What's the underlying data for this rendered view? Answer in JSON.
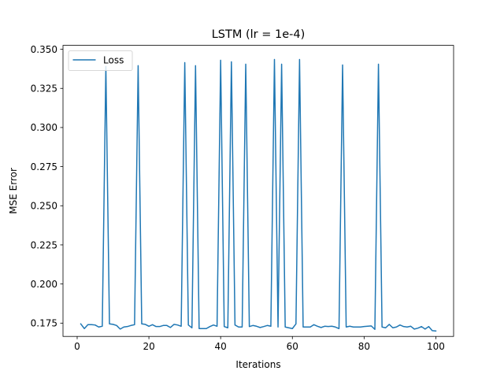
{
  "chart_data": {
    "type": "line",
    "title": "LSTM (lr = 1e-4)",
    "xlabel": "Iterations",
    "ylabel": "MSE Error",
    "xlim": [
      -3.95,
      104.95
    ],
    "ylim": [
      0.1665,
      0.3525
    ],
    "xticks": [
      0,
      20,
      40,
      60,
      80,
      100
    ],
    "yticks": [
      0.175,
      0.2,
      0.225,
      0.25,
      0.275,
      0.3,
      0.325,
      0.35
    ],
    "ytick_labels": [
      "0.175",
      "0.200",
      "0.225",
      "0.250",
      "0.275",
      "0.300",
      "0.325",
      "0.350"
    ],
    "xtick_labels": [
      "0",
      "20",
      "40",
      "60",
      "80",
      "100"
    ],
    "grid": false,
    "legend_position": "top-left",
    "series": [
      {
        "name": "Loss",
        "color": "#1f77b4",
        "x": [
          1,
          2,
          3,
          4,
          5,
          6,
          7,
          8,
          9,
          10,
          11,
          12,
          13,
          14,
          15,
          16,
          17,
          18,
          19,
          20,
          21,
          22,
          23,
          24,
          25,
          26,
          27,
          28,
          29,
          30,
          31,
          32,
          33,
          34,
          35,
          36,
          37,
          38,
          39,
          40,
          41,
          42,
          43,
          44,
          45,
          46,
          47,
          48,
          49,
          50,
          51,
          52,
          53,
          54,
          55,
          56,
          57,
          58,
          59,
          60,
          61,
          62,
          63,
          64,
          65,
          66,
          67,
          68,
          69,
          70,
          71,
          72,
          73,
          74,
          75,
          76,
          77,
          78,
          79,
          80,
          81,
          82,
          83,
          84,
          85,
          86,
          87,
          88,
          89,
          90,
          91,
          92,
          93,
          94,
          95,
          96,
          97,
          98,
          99,
          100
        ],
        "values": [
          0.1745,
          0.1715,
          0.174,
          0.174,
          0.1738,
          0.1725,
          0.173,
          0.339,
          0.1745,
          0.1742,
          0.1735,
          0.1712,
          0.1725,
          0.1728,
          0.1735,
          0.174,
          0.3395,
          0.1745,
          0.1742,
          0.173,
          0.174,
          0.1728,
          0.1728,
          0.1735,
          0.1735,
          0.1722,
          0.1742,
          0.1738,
          0.173,
          0.3415,
          0.1738,
          0.172,
          0.3395,
          0.1715,
          0.1715,
          0.1715,
          0.1728,
          0.1738,
          0.173,
          0.343,
          0.1728,
          0.172,
          0.342,
          0.1738,
          0.1725,
          0.1725,
          0.3405,
          0.1728,
          0.1735,
          0.173,
          0.1722,
          0.1728,
          0.1735,
          0.173,
          0.3435,
          0.1725,
          0.3405,
          0.1725,
          0.172,
          0.1715,
          0.1745,
          0.3435,
          0.1725,
          0.1725,
          0.1725,
          0.174,
          0.173,
          0.1722,
          0.173,
          0.1728,
          0.173,
          0.1725,
          0.1715,
          0.34,
          0.1725,
          0.173,
          0.1725,
          0.1725,
          0.1725,
          0.1728,
          0.173,
          0.1732,
          0.171,
          0.3405,
          0.1725,
          0.172,
          0.1742,
          0.172,
          0.1725,
          0.1738,
          0.1728,
          0.1725,
          0.173,
          0.1712,
          0.1718,
          0.1728,
          0.1712,
          0.1728,
          0.1702,
          0.17
        ]
      }
    ]
  }
}
